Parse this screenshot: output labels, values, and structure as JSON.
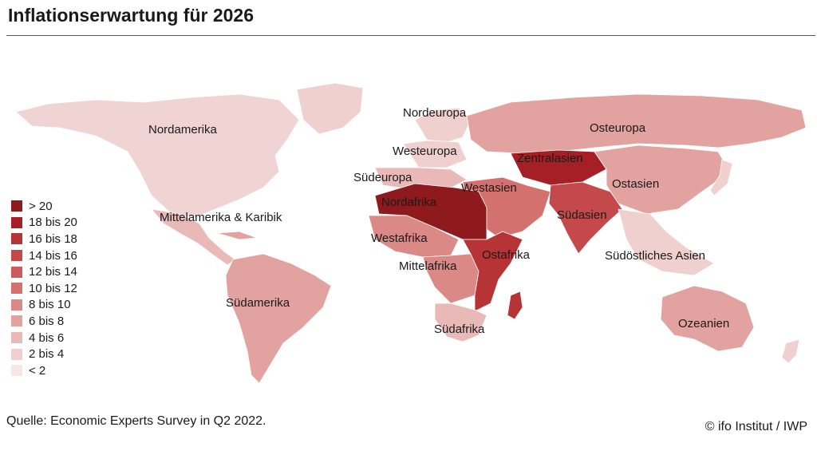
{
  "title": "Inflationserwartung für 2026",
  "source": "Quelle: Economic Experts Survey in Q2 2022.",
  "credit": "© ifo Institut / IWP",
  "legend": [
    {
      "label": "> 20",
      "color": "#8e1a1d"
    },
    {
      "label": "18 bis 20",
      "color": "#a52024"
    },
    {
      "label": "16 bis 18",
      "color": "#b63336"
    },
    {
      "label": "14 bis 16",
      "color": "#c3494b"
    },
    {
      "label": "12 bis 14",
      "color": "#cc5c5c"
    },
    {
      "label": "10 bis 12",
      "color": "#d3716f"
    },
    {
      "label": "8 bis 10",
      "color": "#da8987"
    },
    {
      "label": "6 bis 8",
      "color": "#e2a2a0"
    },
    {
      "label": "4 bis 6",
      "color": "#e9b9b8"
    },
    {
      "label": "2 bis 4",
      "color": "#efd0cf"
    },
    {
      "label": "< 2",
      "color": "#f6e6e5"
    }
  ],
  "regions": {
    "nordamerika": "Nordamerika",
    "mittelamerika": "Mittelamerika & Karibik",
    "suedamerika": "Südamerika",
    "nordeuropa": "Nordeuropa",
    "westeuropa": "Westeuropa",
    "suedeuropa": "Südeuropa",
    "osteuropa": "Osteuropa",
    "zentralasien": "Zentralasien",
    "westasien": "Westasien",
    "suedasien": "Südasien",
    "ostasien": "Ostasien",
    "suedostasien": "Südöstliches Asien",
    "nordafrika": "Nordafrika",
    "westafrika": "Westafrika",
    "mittelafrika": "Mittelafrika",
    "ostafrika": "Ostafrika",
    "suedafrika": "Südafrika",
    "ozeanien": "Ozeanien"
  }
}
